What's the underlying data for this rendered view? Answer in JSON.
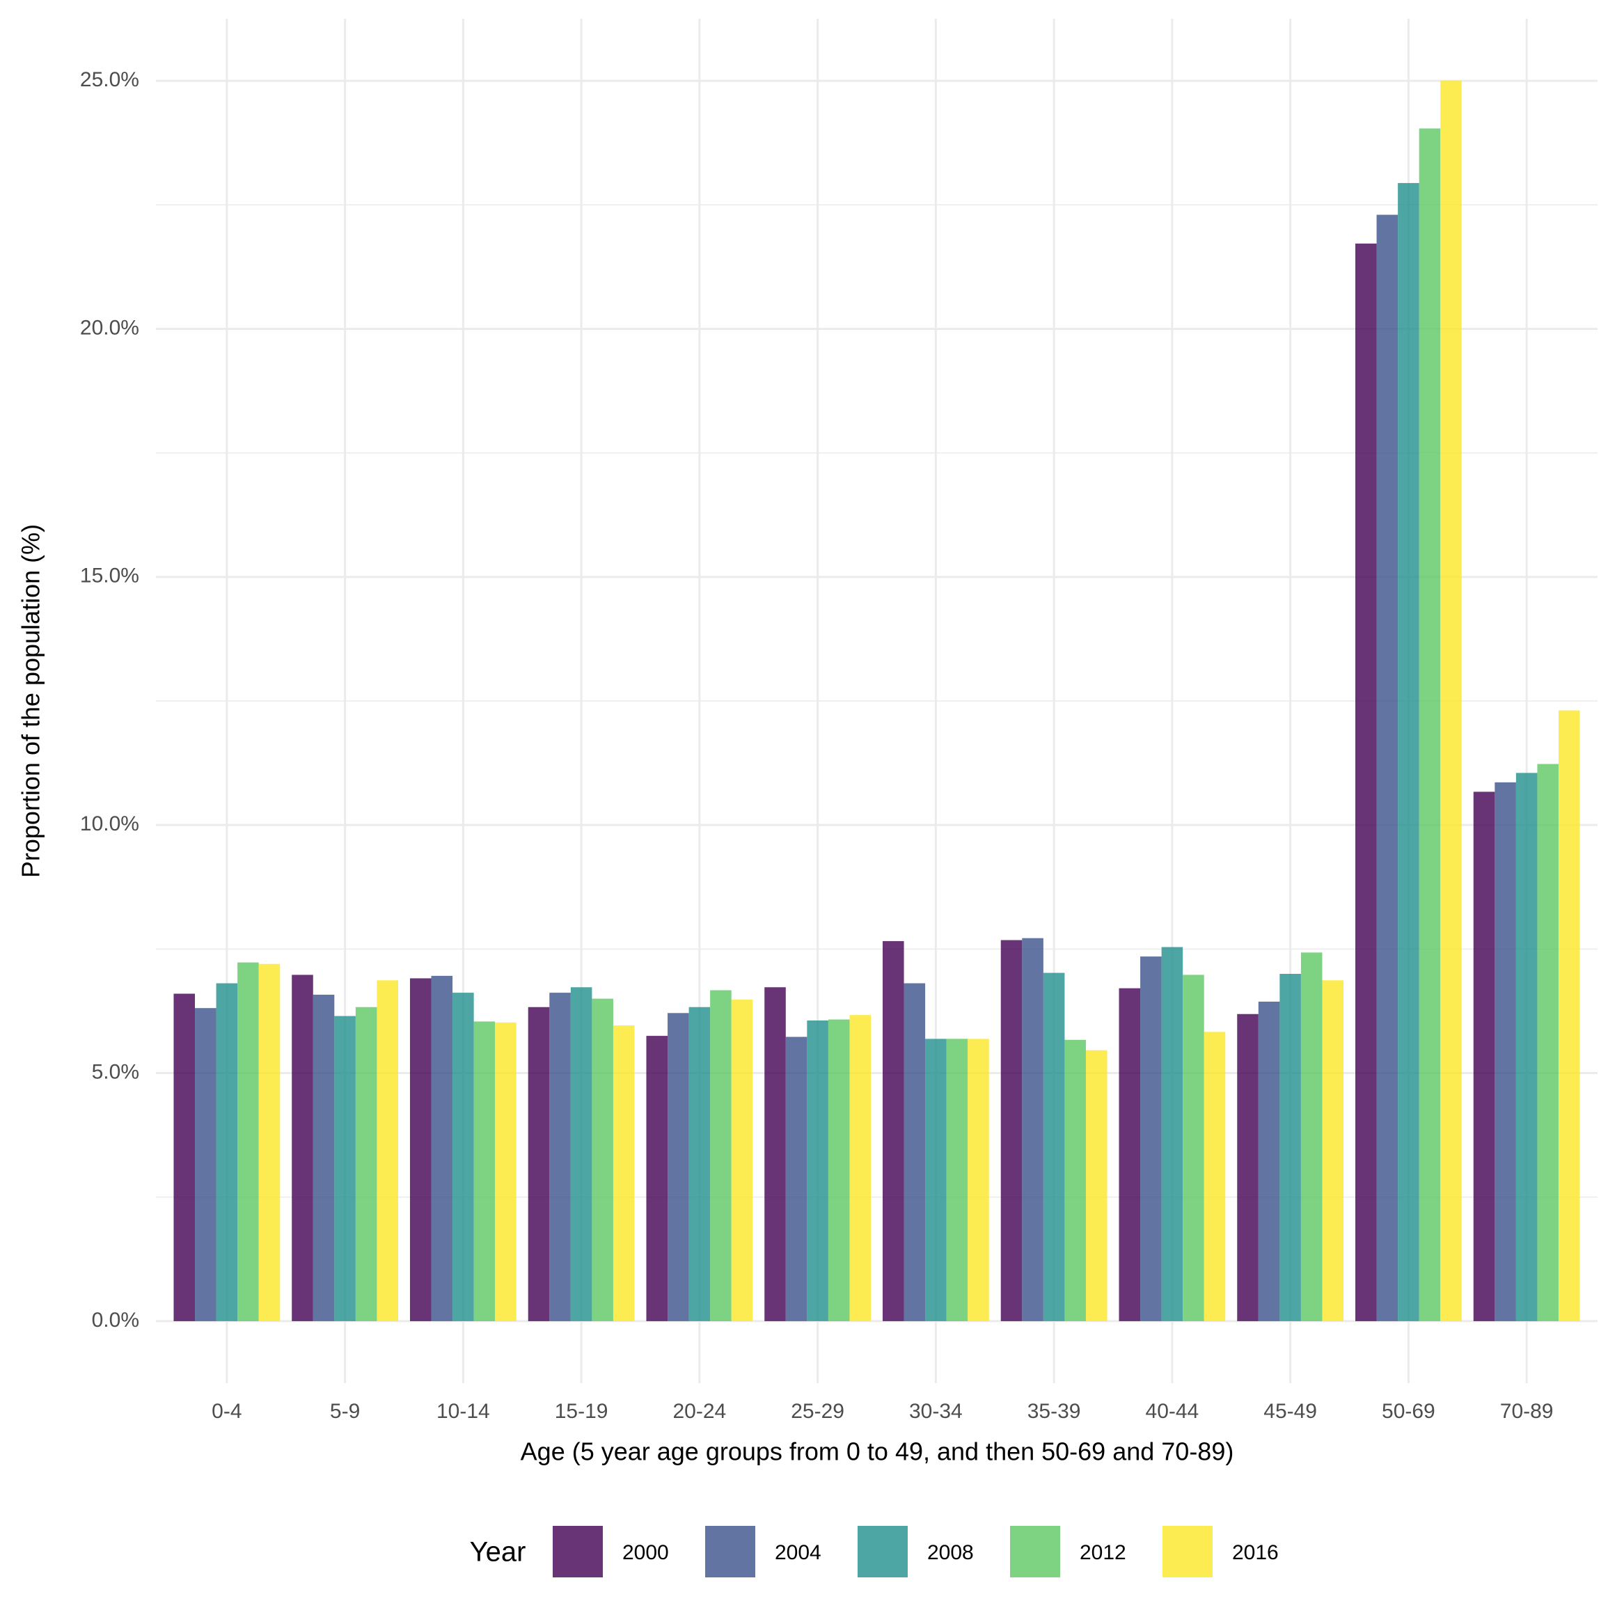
{
  "chart_data": {
    "type": "bar",
    "x_label": "Age (5 year age groups from 0 to 49, and then 50-69 and 70-89)",
    "y_label": "Proportion of the population (%)",
    "legend_title": "Year",
    "legend": "bottom",
    "grid": true,
    "opacity": 0.8,
    "categories": [
      "0-4",
      "5-9",
      "10-14",
      "15-19",
      "20-24",
      "25-29",
      "30-34",
      "35-39",
      "40-44",
      "45-49",
      "50-69",
      "70-89"
    ],
    "series": [
      {
        "name": "2000",
        "color": "#440154",
        "values": [
          6.6,
          6.98,
          6.91,
          6.33,
          5.75,
          6.73,
          7.66,
          7.68,
          6.71,
          6.19,
          21.72,
          10.67
        ]
      },
      {
        "name": "2004",
        "color": "#3B528B",
        "values": [
          6.31,
          6.58,
          6.96,
          6.62,
          6.21,
          5.73,
          6.81,
          7.72,
          7.35,
          6.44,
          22.3,
          10.86
        ]
      },
      {
        "name": "2008",
        "color": "#21908C",
        "values": [
          6.81,
          6.15,
          6.62,
          6.73,
          6.33,
          6.06,
          5.69,
          7.02,
          7.54,
          7.0,
          22.94,
          11.05
        ]
      },
      {
        "name": "2012",
        "color": "#5DC863",
        "values": [
          7.23,
          6.33,
          6.04,
          6.5,
          6.67,
          6.08,
          5.69,
          5.67,
          6.98,
          7.43,
          24.04,
          11.23
        ]
      },
      {
        "name": "2016",
        "color": "#FDE725",
        "values": [
          7.2,
          6.87,
          6.02,
          5.96,
          6.48,
          6.17,
          5.69,
          5.46,
          5.83,
          6.87,
          25.0,
          12.31
        ]
      }
    ],
    "ylim": [
      -1.25,
      26.25
    ],
    "yticks": [
      {
        "value": 0,
        "label": "0.0%"
      },
      {
        "value": 5,
        "label": "5.0%"
      },
      {
        "value": 10,
        "label": "10.0%"
      },
      {
        "value": 15,
        "label": "15.0%"
      },
      {
        "value": 20,
        "label": "20.0%"
      },
      {
        "value": 25,
        "label": "25.0%"
      }
    ]
  }
}
